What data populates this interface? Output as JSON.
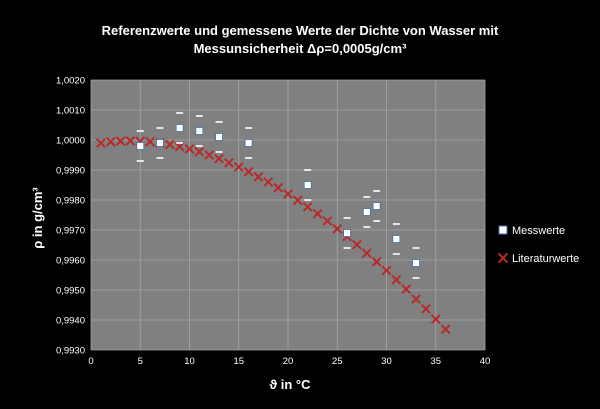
{
  "chart_data": {
    "type": "scatter",
    "title": "Referenzwerte und gemessene Werte der Dichte von Wasser mit",
    "subtitle": "Messunsicherheit Δρ=0,0005g/cm³",
    "xlabel": "ϑ in °C",
    "ylabel": "ρ in g/cm³",
    "xlim": [
      0,
      40
    ],
    "ylim": [
      0.993,
      1.002
    ],
    "x_ticks": [
      0,
      5,
      10,
      15,
      20,
      25,
      30,
      35,
      40
    ],
    "y_ticks": [
      0.993,
      0.994,
      0.995,
      0.996,
      0.997,
      0.998,
      0.999,
      1.0,
      1.001,
      1.002
    ],
    "y_tick_labels": [
      "0,9930",
      "0,9940",
      "0,9950",
      "0,9960",
      "0,9970",
      "0,9980",
      "0,9990",
      "1,0000",
      "1,0010",
      "1,0020"
    ],
    "grid": true,
    "legend_position": "right",
    "colors": {
      "background": "#000000",
      "plot_area": "#808080",
      "gridline": "#a6a6a6",
      "literature": "#b72a2a",
      "measured_fill": "#ffffff",
      "measured_edge": "#3f6fb0",
      "error_bar": "#ffffff",
      "text": "#ffffff"
    },
    "series": [
      {
        "name": "Messwerte",
        "marker": "square",
        "error": 0.0005,
        "points": [
          [
            5,
            0.9998
          ],
          [
            7,
            0.9999
          ],
          [
            9,
            1.0004
          ],
          [
            11,
            1.0003
          ],
          [
            13,
            1.0001
          ],
          [
            16,
            0.9999
          ],
          [
            22,
            0.9985
          ],
          [
            26,
            0.9969
          ],
          [
            28,
            0.9976
          ],
          [
            29,
            0.9978
          ],
          [
            31,
            0.9967
          ],
          [
            33,
            0.9959
          ]
        ]
      },
      {
        "name": "Literaturwerte",
        "marker": "x",
        "points": [
          [
            1,
            0.9999
          ],
          [
            2,
            0.99994
          ],
          [
            3,
            0.99996
          ],
          [
            4,
            0.99997
          ],
          [
            5,
            0.99996
          ],
          [
            6,
            0.99994
          ],
          [
            7,
            0.9999
          ],
          [
            8,
            0.99985
          ],
          [
            9,
            0.99978
          ],
          [
            10,
            0.9997
          ],
          [
            11,
            0.99961
          ],
          [
            12,
            0.9995
          ],
          [
            13,
            0.99938
          ],
          [
            14,
            0.99924
          ],
          [
            15,
            0.9991
          ],
          [
            16,
            0.99894
          ],
          [
            17,
            0.99877
          ],
          [
            18,
            0.9986
          ],
          [
            19,
            0.99841
          ],
          [
            20,
            0.9982
          ],
          [
            21,
            0.99799
          ],
          [
            22,
            0.99777
          ],
          [
            23,
            0.99754
          ],
          [
            24,
            0.9973
          ],
          [
            25,
            0.99704
          ],
          [
            26,
            0.99678
          ],
          [
            27,
            0.99651
          ],
          [
            28,
            0.99623
          ],
          [
            29,
            0.99594
          ],
          [
            30,
            0.99565
          ],
          [
            31,
            0.99534
          ],
          [
            32,
            0.99503
          ],
          [
            33,
            0.9947
          ],
          [
            34,
            0.99437
          ],
          [
            35,
            0.99403
          ],
          [
            36,
            0.99369
          ]
        ]
      }
    ]
  }
}
